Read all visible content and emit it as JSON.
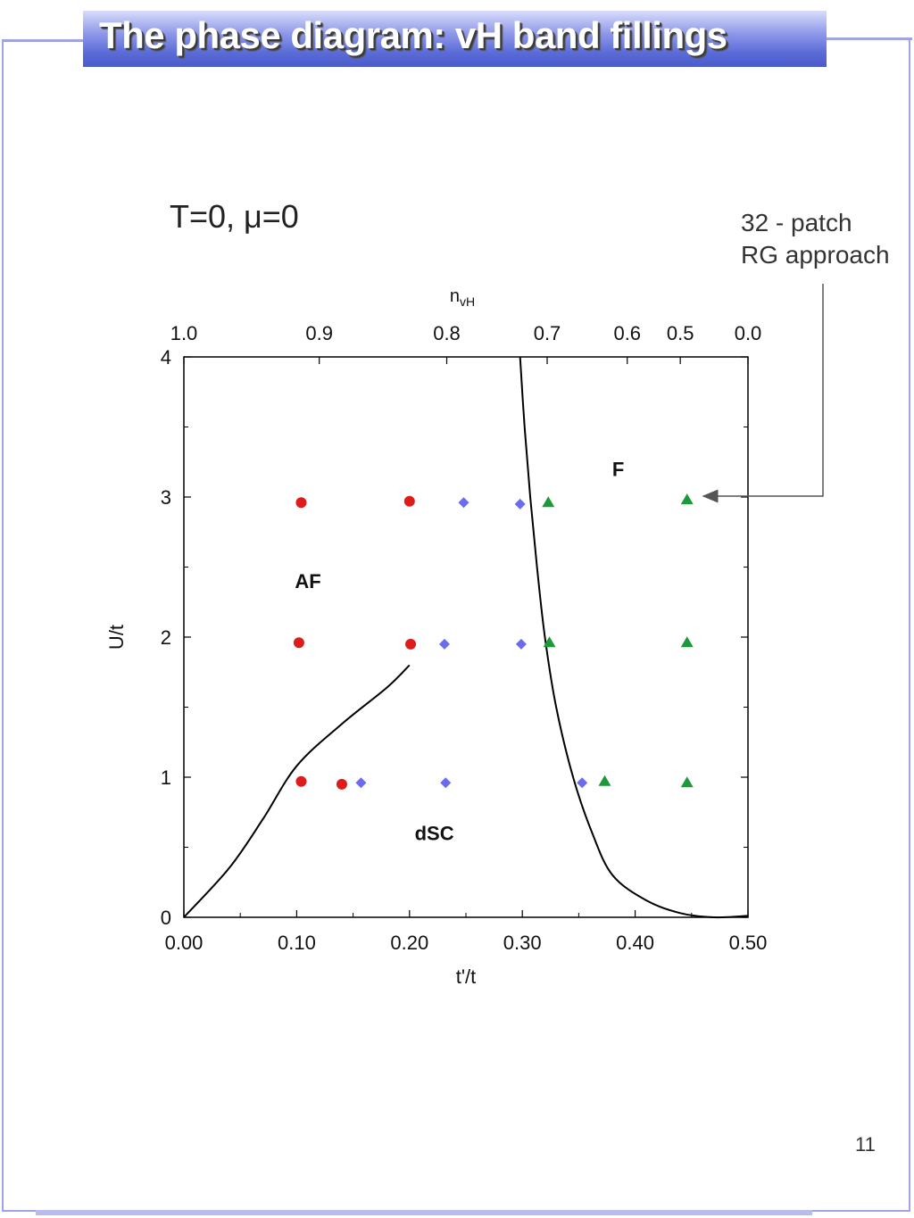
{
  "slide": {
    "title": "The phase diagram: vH band fillings",
    "subtitle": "T=0, μ=0",
    "annotation_line1": "32 - patch",
    "annotation_line2": "RG approach",
    "page_number": "11"
  },
  "colors": {
    "af": "#dd1c1c",
    "dsc": "#6b6bf0",
    "f": "#1c9a3a",
    "frame": "#a0a4e4",
    "title_bar": "#5a6bd8"
  },
  "chart_data": {
    "type": "scatter",
    "title": "",
    "xlabel": "t'/t",
    "ylabel": "U/t",
    "top_axis_label_main": "n",
    "top_axis_label_sub": "vH",
    "xlim": [
      0,
      0.5
    ],
    "ylim": [
      0,
      4
    ],
    "x_ticks": [
      "0.00",
      "0.10",
      "0.20",
      "0.30",
      "0.40",
      "0.50"
    ],
    "y_ticks": [
      "0",
      "1",
      "2",
      "3",
      "4"
    ],
    "top_ticks": [
      {
        "label": "1.0",
        "x": 0.0
      },
      {
        "label": "0.9",
        "x": 0.12
      },
      {
        "label": "0.8",
        "x": 0.233
      },
      {
        "label": "0.7",
        "x": 0.322
      },
      {
        "label": "0.6",
        "x": 0.393
      },
      {
        "label": "0.5",
        "x": 0.44
      },
      {
        "label": "0.0",
        "x": 0.5
      }
    ],
    "region_labels": [
      {
        "text": "AF",
        "x": 0.11,
        "y": 2.35
      },
      {
        "text": "F",
        "x": 0.385,
        "y": 3.15
      },
      {
        "text": "dSC",
        "x": 0.222,
        "y": 0.55
      }
    ],
    "series": [
      {
        "phase": "AF",
        "marker": "circle",
        "points": [
          [
            0.104,
            2.96
          ],
          [
            0.2,
            2.97
          ],
          [
            0.102,
            1.96
          ],
          [
            0.201,
            1.95
          ],
          [
            0.104,
            0.97
          ],
          [
            0.14,
            0.95
          ]
        ]
      },
      {
        "phase": "dSC",
        "marker": "diamond",
        "points": [
          [
            0.248,
            2.96
          ],
          [
            0.298,
            2.95
          ],
          [
            0.231,
            1.95
          ],
          [
            0.299,
            1.95
          ],
          [
            0.157,
            0.96
          ],
          [
            0.232,
            0.96
          ],
          [
            0.353,
            0.96
          ]
        ]
      },
      {
        "phase": "F",
        "marker": "triangle",
        "points": [
          [
            0.323,
            2.96
          ],
          [
            0.446,
            2.98
          ],
          [
            0.324,
            1.96
          ],
          [
            0.446,
            1.96
          ],
          [
            0.373,
            0.97
          ],
          [
            0.446,
            0.96
          ]
        ]
      }
    ],
    "boundaries": [
      {
        "name": "af-dsc-boundary",
        "points": [
          [
            0.0,
            0.0
          ],
          [
            0.04,
            0.35
          ],
          [
            0.07,
            0.7
          ],
          [
            0.1,
            1.08
          ],
          [
            0.14,
            1.38
          ],
          [
            0.18,
            1.64
          ],
          [
            0.2,
            1.8
          ]
        ]
      },
      {
        "name": "f-boundary",
        "points": [
          [
            0.298,
            4.0
          ],
          [
            0.302,
            3.5
          ],
          [
            0.307,
            3.0
          ],
          [
            0.313,
            2.5
          ],
          [
            0.32,
            2.0
          ],
          [
            0.33,
            1.5
          ],
          [
            0.345,
            1.0
          ],
          [
            0.362,
            0.6
          ],
          [
            0.38,
            0.3
          ],
          [
            0.41,
            0.12
          ],
          [
            0.44,
            0.03
          ],
          [
            0.47,
            0.0
          ],
          [
            0.5,
            0.01
          ]
        ]
      }
    ]
  }
}
